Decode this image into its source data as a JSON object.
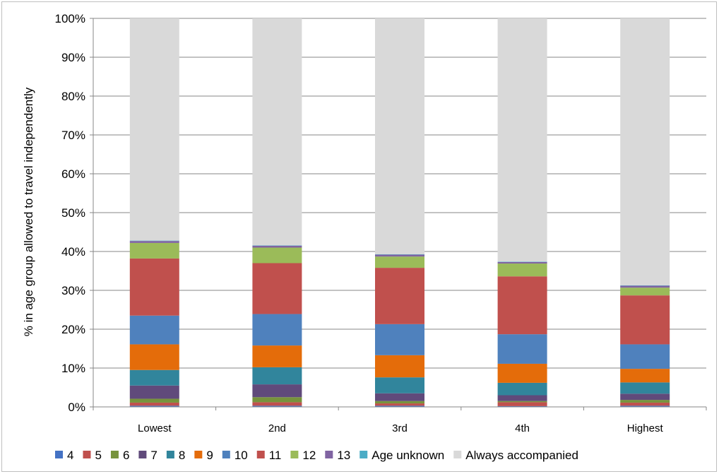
{
  "chart_data": {
    "type": "bar",
    "stacked": true,
    "title": "",
    "xlabel": "",
    "ylabel": "% in age group allowed to travel independently",
    "ylim": [
      0,
      100
    ],
    "y_ticks": [
      "0%",
      "10%",
      "20%",
      "30%",
      "40%",
      "50%",
      "60%",
      "70%",
      "80%",
      "90%",
      "100%"
    ],
    "y_tick_values": [
      0,
      10,
      20,
      30,
      40,
      50,
      60,
      70,
      80,
      90,
      100
    ],
    "grid": true,
    "legend_position": "bottom",
    "categories": [
      "Lowest",
      "2nd",
      "3rd",
      "4th",
      "Highest"
    ],
    "series": [
      {
        "name": "4",
        "color": "#4472c4",
        "values": [
          0.3,
          0.3,
          0.3,
          0.2,
          0.3
        ]
      },
      {
        "name": "5",
        "color": "#c0504d",
        "values": [
          0.8,
          0.9,
          0.6,
          1.0,
          0.8
        ]
      },
      {
        "name": "6",
        "color": "#77933c",
        "values": [
          1.0,
          1.3,
          0.6,
          0.3,
          0.7
        ]
      },
      {
        "name": "7",
        "color": "#604a7b",
        "values": [
          3.4,
          3.3,
          2.0,
          1.5,
          1.6
        ]
      },
      {
        "name": "8",
        "color": "#31859c",
        "values": [
          4.0,
          4.4,
          4.1,
          3.2,
          2.9
        ]
      },
      {
        "name": "9",
        "color": "#e46c0a",
        "values": [
          6.6,
          5.6,
          5.7,
          4.9,
          3.5
        ]
      },
      {
        "name": "10",
        "color": "#4f81bd",
        "values": [
          7.4,
          8.1,
          8.0,
          7.6,
          6.3
        ]
      },
      {
        "name": "11",
        "color": "#c0504d",
        "values": [
          14.7,
          13.1,
          14.5,
          14.9,
          12.6
        ]
      },
      {
        "name": "12",
        "color": "#9bbb59",
        "values": [
          4.0,
          4.0,
          2.9,
          3.3,
          2.0
        ]
      },
      {
        "name": "13",
        "color": "#8064a2",
        "values": [
          0.5,
          0.5,
          0.5,
          0.4,
          0.5
        ]
      },
      {
        "name": "Age unknown",
        "color": "#4bacc6",
        "values": [
          0.1,
          0.1,
          0.1,
          0.1,
          0.1
        ]
      },
      {
        "name": "Always accompanied",
        "color": "#d9d9d9",
        "values": [
          57.2,
          58.4,
          60.7,
          62.6,
          68.7
        ]
      }
    ]
  }
}
